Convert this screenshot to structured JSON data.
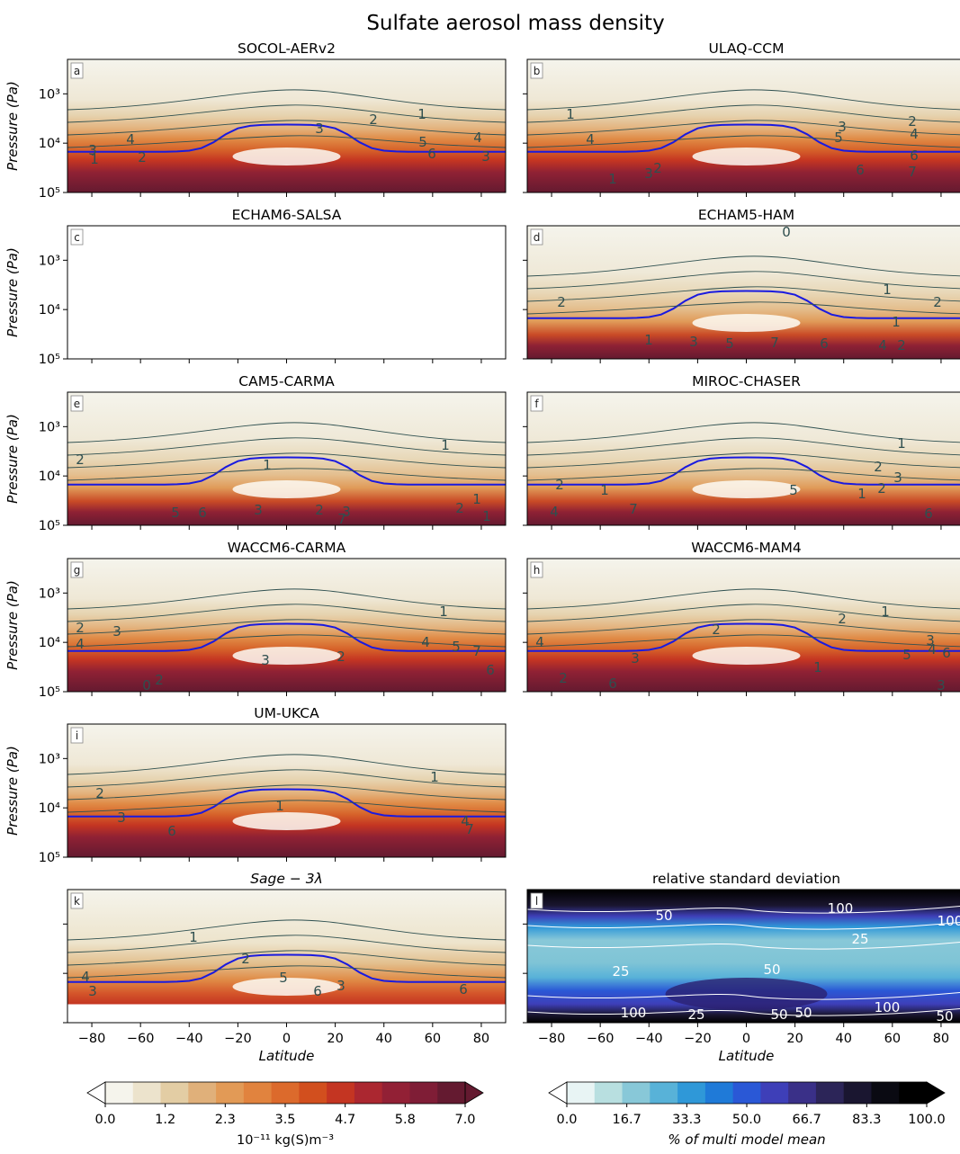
{
  "suptitle": "Sulfate aerosol mass density",
  "chart_data": [
    {
      "type": "contour",
      "panel_label": "a",
      "title": "SOCOL-AERv2",
      "ylabel": "Pressure (Pa)",
      "ylim": [
        100000,
        200
      ],
      "yscale": "log",
      "xlim": [
        -90,
        90
      ],
      "yticks": [
        "10³",
        "10⁴",
        "10⁵"
      ],
      "contour_labels": [
        "1",
        "2",
        "3",
        "4",
        "5",
        "6",
        "1",
        "2",
        "3",
        "4",
        "3"
      ]
    },
    {
      "type": "contour",
      "panel_label": "b",
      "title": "ULAQ-CCM",
      "ylim": [
        100000,
        200
      ],
      "yscale": "log",
      "xlim": [
        -90,
        90
      ],
      "contour_labels": [
        "1",
        "2",
        "3",
        "4",
        "5",
        "6",
        "7",
        "1",
        "2",
        "3",
        "4",
        "6"
      ]
    },
    {
      "type": "contour",
      "panel_label": "c",
      "title": "ECHAM6-SALSA",
      "ylabel": "Pressure (Pa)",
      "ylim": [
        100000,
        200
      ],
      "yscale": "log",
      "xlim": [
        -90,
        90
      ],
      "yticks": [
        "10³",
        "10⁴",
        "10⁵"
      ],
      "contour_labels": []
    },
    {
      "type": "contour",
      "panel_label": "d",
      "title": "ECHAM5-HAM",
      "ylim": [
        100000,
        200
      ],
      "yscale": "log",
      "xlim": [
        -90,
        90
      ],
      "contour_labels": [
        "0",
        "1",
        "2",
        "2",
        "1",
        "1",
        "3",
        "5",
        "7",
        "6",
        "4",
        "2"
      ]
    },
    {
      "type": "contour",
      "panel_label": "e",
      "title": "CAM5-CARMA",
      "ylabel": "Pressure (Pa)",
      "ylim": [
        100000,
        200
      ],
      "yscale": "log",
      "xlim": [
        -90,
        90
      ],
      "yticks": [
        "10³",
        "10⁴",
        "10⁵"
      ],
      "contour_labels": [
        "1",
        "2",
        "1",
        "3",
        "2",
        "5",
        "6",
        "3",
        "7",
        "1",
        "2",
        "1"
      ]
    },
    {
      "type": "contour",
      "panel_label": "f",
      "title": "MIROC-CHASER",
      "ylim": [
        100000,
        200
      ],
      "yscale": "log",
      "xlim": [
        -90,
        90
      ],
      "contour_labels": [
        "1",
        "2",
        "3",
        "2",
        "1",
        "2",
        "1",
        "4",
        "7",
        "5",
        "6"
      ]
    },
    {
      "type": "contour",
      "panel_label": "g",
      "title": "WACCM6-CARMA",
      "ylabel": "Pressure (Pa)",
      "ylim": [
        100000,
        200
      ],
      "yscale": "log",
      "xlim": [
        -90,
        90
      ],
      "yticks": [
        "10³",
        "10⁴",
        "10⁵"
      ],
      "contour_labels": [
        "1",
        "2",
        "3",
        "4",
        "3",
        "4",
        "5",
        "2",
        "7",
        "6",
        "2",
        "0"
      ]
    },
    {
      "type": "contour",
      "panel_label": "h",
      "title": "WACCM6-MAM4",
      "ylim": [
        100000,
        200
      ],
      "yscale": "log",
      "xlim": [
        -90,
        90
      ],
      "contour_labels": [
        "1",
        "2",
        "2",
        "3",
        "4",
        "4",
        "5",
        "6",
        "3",
        "1",
        "2",
        "6",
        "3"
      ]
    },
    {
      "type": "contour",
      "panel_label": "i",
      "title": "UM-UKCA",
      "ylabel": "Pressure (Pa)",
      "ylim": [
        100000,
        200
      ],
      "yscale": "log",
      "xlim": [
        -90,
        90
      ],
      "yticks": [
        "10³",
        "10⁴",
        "10⁵"
      ],
      "contour_labels": [
        "1",
        "2",
        "1",
        "3",
        "6",
        "4",
        "7"
      ]
    },
    {
      "type": "contour",
      "panel_label": "k",
      "title": "Sage − 3λ",
      "ylabel": "Pressure (Pa)",
      "ylim": [
        100000,
        200
      ],
      "yscale": "log",
      "xlim": [
        -90,
        90
      ],
      "yticks": [
        "10³",
        "10⁴",
        "10⁵"
      ],
      "xlabel": "Latitude",
      "xticks": [
        "−80",
        "−60",
        "−40",
        "−20",
        "0",
        "20",
        "40",
        "60",
        "80"
      ],
      "contour_labels": [
        "1",
        "2",
        "4",
        "3",
        "5",
        "6",
        "3",
        "6"
      ]
    },
    {
      "type": "contour",
      "panel_label": "l",
      "title": "relative standard deviation",
      "ylim": [
        100000,
        200
      ],
      "yscale": "log",
      "xlim": [
        -90,
        90
      ],
      "xlabel": "Latitude",
      "xticks": [
        "−80",
        "−60",
        "−40",
        "−20",
        "0",
        "20",
        "40",
        "60",
        "80"
      ],
      "contour_labels": [
        "100",
        "50",
        "25",
        "25",
        "50",
        "100",
        "25",
        "50",
        "100",
        "50",
        "100",
        "50"
      ]
    }
  ],
  "colorbars": [
    {
      "ticks": [
        "0.0",
        "1.2",
        "2.3",
        "3.5",
        "4.7",
        "5.8",
        "7.0"
      ],
      "label": "10⁻¹¹ kg(S)m⁻³",
      "colors": [
        "#f5f4ec",
        "#ece3cc",
        "#e3cda4",
        "#e0b07a",
        "#e29a56",
        "#e1833e",
        "#dc6a2c",
        "#d24f1e",
        "#c43522",
        "#ab2730",
        "#922035",
        "#7f1d36",
        "#641a30"
      ]
    },
    {
      "ticks": [
        "0.0",
        "16.7",
        "33.3",
        "50.0",
        "66.7",
        "83.3",
        "100.0"
      ],
      "label": "% of multi model mean",
      "colors": [
        "#e8f4f4",
        "#b8dfe0",
        "#88c8d8",
        "#58b2d8",
        "#2f98d8",
        "#1f7ad8",
        "#2a58d6",
        "#3e3fb8",
        "#3a3088",
        "#2c2558",
        "#1a1630",
        "#0a0a12",
        "#000000"
      ]
    }
  ]
}
